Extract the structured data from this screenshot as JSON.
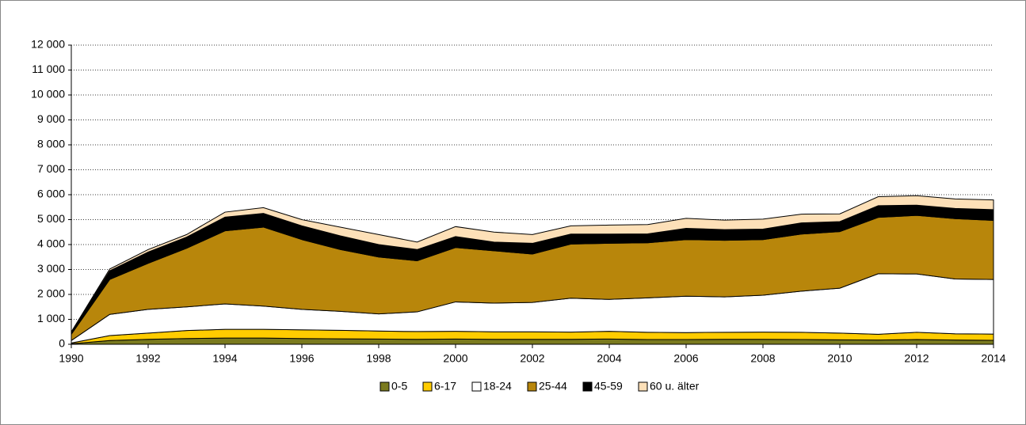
{
  "chart_data": {
    "type": "stacked_area",
    "x": [
      1990,
      1991,
      1992,
      1993,
      1994,
      1995,
      1996,
      1997,
      1998,
      1999,
      2000,
      2001,
      2002,
      2003,
      2004,
      2005,
      2006,
      2007,
      2008,
      2009,
      2010,
      2011,
      2012,
      2013,
      2014
    ],
    "series": [
      {
        "name": "0-5",
        "color": "#7a7a1e",
        "values": [
          20,
          150,
          200,
          230,
          250,
          250,
          230,
          220,
          210,
          200,
          210,
          200,
          200,
          200,
          210,
          190,
          190,
          200,
          200,
          190,
          180,
          170,
          190,
          170,
          160
        ]
      },
      {
        "name": "6-17",
        "color": "#ffcc00",
        "values": [
          30,
          200,
          250,
          320,
          350,
          350,
          350,
          340,
          320,
          310,
          310,
          300,
          300,
          290,
          310,
          290,
          280,
          280,
          290,
          290,
          270,
          230,
          290,
          250,
          250
        ]
      },
      {
        "name": "18-24",
        "color": "#ffffff",
        "values": [
          100,
          850,
          950,
          950,
          1020,
          930,
          820,
          760,
          690,
          790,
          1180,
          1150,
          1180,
          1360,
          1280,
          1380,
          1460,
          1420,
          1480,
          1650,
          1800,
          2430,
          2340,
          2200,
          2190
        ]
      },
      {
        "name": "25-44",
        "color": "#b8860b",
        "values": [
          250,
          1400,
          1850,
          2350,
          2930,
          3170,
          2800,
          2480,
          2280,
          2050,
          2180,
          2100,
          1940,
          2170,
          2250,
          2210,
          2270,
          2270,
          2230,
          2290,
          2270,
          2260,
          2350,
          2420,
          2370
        ]
      },
      {
        "name": "45-59",
        "color": "#000000",
        "values": [
          60,
          350,
          450,
          450,
          550,
          550,
          550,
          550,
          500,
          450,
          440,
          350,
          430,
          400,
          370,
          360,
          450,
          430,
          420,
          450,
          400,
          470,
          410,
          410,
          430
        ]
      },
      {
        "name": "60 u. älter",
        "color": "#fde0b8",
        "values": [
          40,
          70,
          100,
          100,
          200,
          230,
          250,
          350,
          400,
          300,
          400,
          400,
          350,
          330,
          360,
          370,
          400,
          380,
          400,
          350,
          310,
          360,
          380,
          380,
          390
        ]
      }
    ],
    "xlim": [
      1990,
      2014
    ],
    "xticks": [
      1990,
      1992,
      1994,
      1996,
      1998,
      2000,
      2002,
      2004,
      2006,
      2008,
      2010,
      2012,
      2014
    ],
    "ylim": [
      0,
      12000
    ],
    "yticks": [
      0,
      {
        "value": 1000,
        "label": "1 000"
      },
      {
        "value": 2000,
        "label": "2 000"
      },
      {
        "value": 3000,
        "label": "3 000"
      },
      {
        "value": 4000,
        "label": "4 000"
      },
      {
        "value": 5000,
        "label": "5 000"
      },
      {
        "value": 6000,
        "label": "6 000"
      },
      {
        "value": 7000,
        "label": "7 000"
      },
      {
        "value": 8000,
        "label": "8 000"
      },
      {
        "value": 9000,
        "label": "9 000"
      },
      {
        "value": 10000,
        "label": "10 000"
      },
      {
        "value": 11000,
        "label": "11 000"
      },
      {
        "value": 12000,
        "label": "12 000"
      }
    ],
    "grid": true,
    "legend": "bottom"
  }
}
